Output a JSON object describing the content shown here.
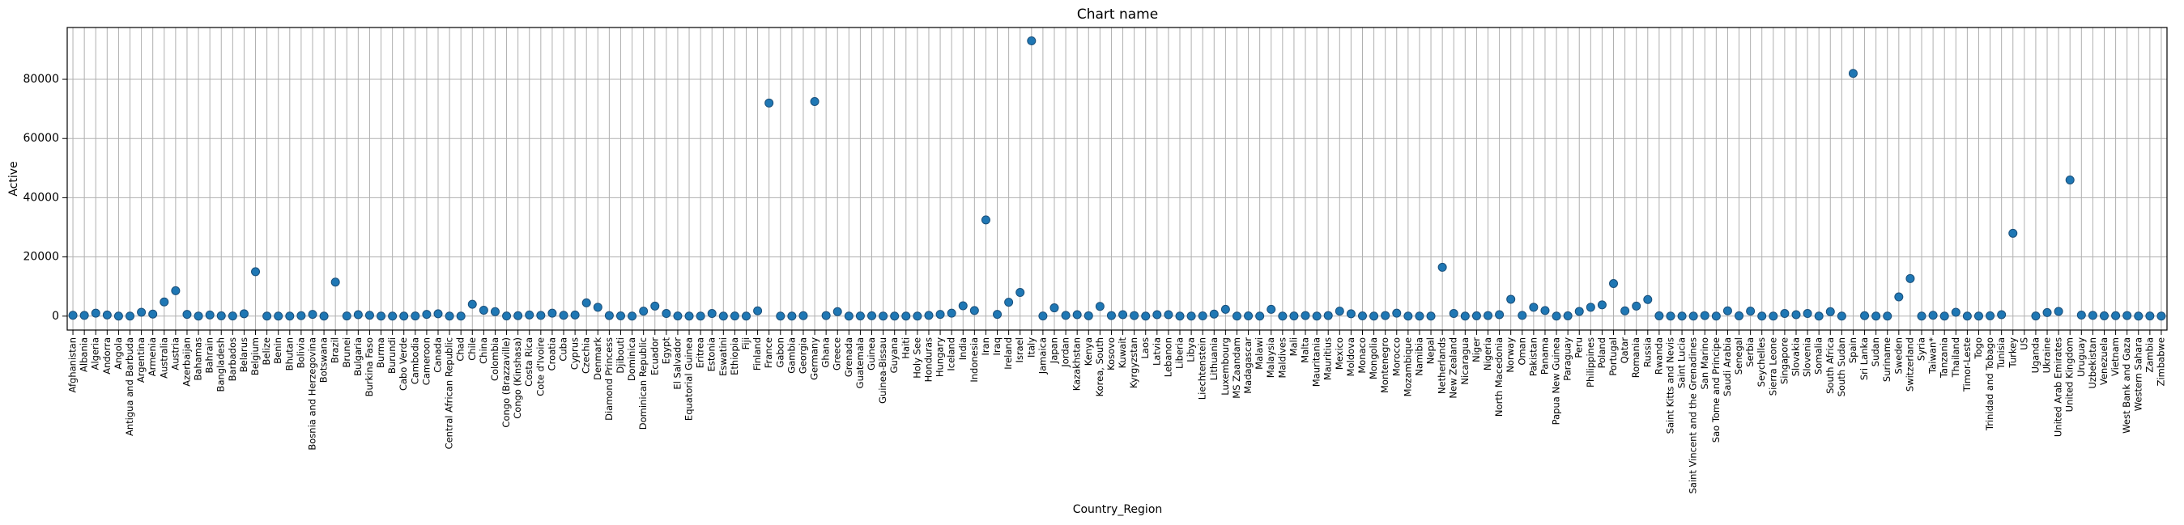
{
  "chart_data": {
    "type": "scatter",
    "title": "Chart name",
    "x_label": "Country_Region",
    "y_label": "Active",
    "color": "#1f77b4",
    "grid": true,
    "ylim": [
      -4700,
      97500
    ],
    "yticks": [
      0,
      20000,
      40000,
      60000,
      80000
    ],
    "categories": [
      "Afghanistan",
      "Albania",
      "Algeria",
      "Andorra",
      "Angola",
      "Antigua and Barbuda",
      "Argentina",
      "Armenia",
      "Australia",
      "Austria",
      "Azerbaijan",
      "Bahamas",
      "Bahrain",
      "Bangladesh",
      "Barbados",
      "Belarus",
      "Belgium",
      "Belize",
      "Benin",
      "Bhutan",
      "Bolivia",
      "Bosnia and Herzegovina",
      "Botswana",
      "Brazil",
      "Brunei",
      "Bulgaria",
      "Burkina Faso",
      "Burma",
      "Burundi",
      "Cabo Verde",
      "Cambodia",
      "Cameroon",
      "Canada",
      "Central African Republic",
      "Chad",
      "Chile",
      "China",
      "Colombia",
      "Congo (Brazzaville)",
      "Congo (Kinshasa)",
      "Costa Rica",
      "Cote d'Ivoire",
      "Croatia",
      "Cuba",
      "Cyprus",
      "Czechia",
      "Denmark",
      "Diamond Princess",
      "Djibouti",
      "Dominica",
      "Dominican Republic",
      "Ecuador",
      "Egypt",
      "El Salvador",
      "Equatorial Guinea",
      "Eritrea",
      "Estonia",
      "Eswatini",
      "Ethiopia",
      "Fiji",
      "Finland",
      "France",
      "Gabon",
      "Gambia",
      "Georgia",
      "Germany",
      "Ghana",
      "Greece",
      "Grenada",
      "Guatemala",
      "Guinea",
      "Guinea-Bissau",
      "Guyana",
      "Haiti",
      "Holy See",
      "Honduras",
      "Hungary",
      "Iceland",
      "India",
      "Indonesia",
      "Iran",
      "Iraq",
      "Ireland",
      "Israel",
      "Italy",
      "Jamaica",
      "Japan",
      "Jordan",
      "Kazakhstan",
      "Kenya",
      "Korea, South",
      "Kosovo",
      "Kuwait",
      "Kyrgyzstan",
      "Laos",
      "Latvia",
      "Lebanon",
      "Liberia",
      "Libya",
      "Liechtenstein",
      "Lithuania",
      "Luxembourg",
      "MS Zaandam",
      "Madagascar",
      "Malawi",
      "Malaysia",
      "Maldives",
      "Mali",
      "Malta",
      "Mauritania",
      "Mauritius",
      "Mexico",
      "Moldova",
      "Monaco",
      "Mongolia",
      "Montenegro",
      "Morocco",
      "Mozambique",
      "Namibia",
      "Nepal",
      "Netherlands",
      "New Zealand",
      "Nicaragua",
      "Niger",
      "Nigeria",
      "North Macedonia",
      "Norway",
      "Oman",
      "Pakistan",
      "Panama",
      "Papua New Guinea",
      "Paraguay",
      "Peru",
      "Philippines",
      "Poland",
      "Portugal",
      "Qatar",
      "Romania",
      "Russia",
      "Rwanda",
      "Saint Kitts and Nevis",
      "Saint Lucia",
      "Saint Vincent and the Grenadines",
      "San Marino",
      "Sao Tome and Principe",
      "Saudi Arabia",
      "Senegal",
      "Serbia",
      "Seychelles",
      "Sierra Leone",
      "Singapore",
      "Slovakia",
      "Slovenia",
      "Somalia",
      "South Africa",
      "South Sudan",
      "Spain",
      "Sri Lanka",
      "Sudan",
      "Suriname",
      "Sweden",
      "Switzerland",
      "Syria",
      "Taiwan*",
      "Tanzania",
      "Thailand",
      "Timor-Leste",
      "Togo",
      "Trinidad and Tobago",
      "Tunisia",
      "Turkey",
      "US",
      "Uganda",
      "Ukraine",
      "United Arab Emirates",
      "United Kingdom",
      "Uruguay",
      "Uzbekistan",
      "Venezuela",
      "Vietnam",
      "West Bank and Gaza",
      "Western Sahara",
      "Zambia",
      "Zimbabwe"
    ],
    "values": [
      300,
      250,
      1000,
      400,
      15,
      15,
      1300,
      700,
      4800,
      8600,
      600,
      30,
      400,
      100,
      50,
      800,
      15000,
      7,
      20,
      5,
      150,
      600,
      6,
      11500,
      50,
      500,
      300,
      20,
      3,
      7,
      60,
      600,
      800,
      10,
      10,
      4000,
      2000,
      1500,
      40,
      150,
      400,
      250,
      1000,
      300,
      400,
      4500,
      3000,
      200,
      80,
      14,
      1700,
      3400,
      900,
      60,
      15,
      25,
      900,
      9,
      40,
      14,
      1800,
      72000,
      20,
      4,
      150,
      72500,
      200,
      1500,
      12,
      60,
      120,
      30,
      20,
      25,
      7,
      250,
      600,
      1000,
      3500,
      1900,
      32500,
      600,
      4700,
      8000,
      93000,
      50,
      2800,
      250,
      500,
      130,
      3300,
      200,
      500,
      200,
      10,
      500,
      500,
      10,
      20,
      70,
      700,
      2300,
      9,
      70,
      4,
      2300,
      10,
      40,
      200,
      5,
      200,
      1700,
      800,
      70,
      14,
      200,
      1000,
      10,
      14,
      9,
      16500,
      900,
      5,
      100,
      200,
      500,
      5700,
      250,
      3000,
      1900,
      1,
      100,
      1600,
      3000,
      3800,
      11000,
      1800,
      3400,
      5600,
      100,
      9,
      14,
      6,
      200,
      4,
      1800,
      100,
      1700,
      10,
      6,
      900,
      500,
      900,
      7,
      1500,
      1,
      82000,
      150,
      10,
      8,
      6500,
      12700,
      15,
      300,
      20,
      1300,
      1,
      30,
      100,
      500,
      28000,
      null,
      50,
      1200,
      1600,
      46000,
      350,
      250,
      100,
      150,
      200,
      4,
      35,
      8
    ]
  }
}
